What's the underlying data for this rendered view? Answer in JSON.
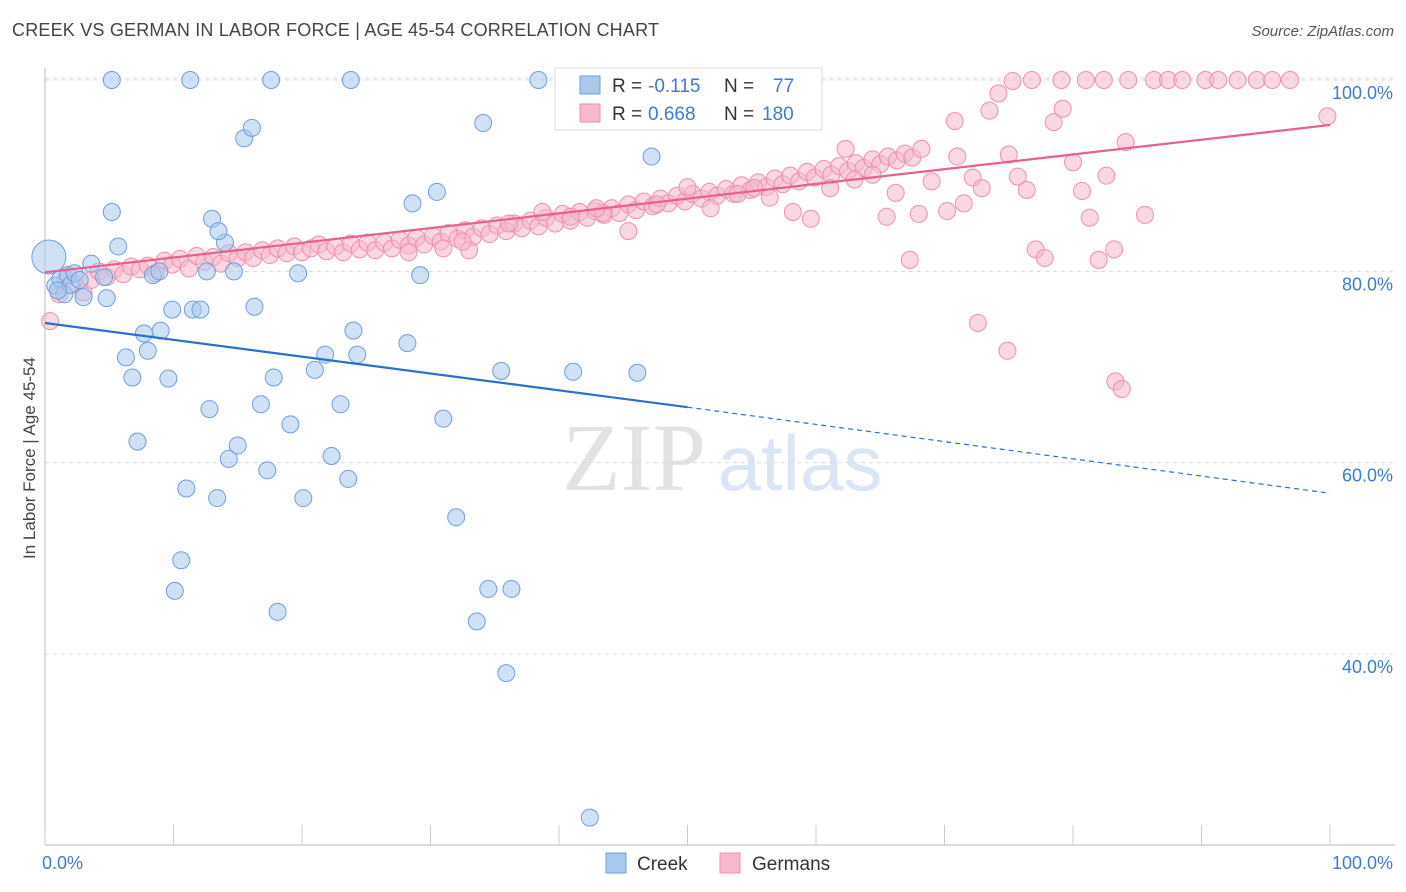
{
  "header": {
    "title": "CREEK VS GERMAN IN LABOR FORCE | AGE 45-54 CORRELATION CHART",
    "source": "Source: ZipAtlas.com"
  },
  "watermark": {
    "zip": "ZIP",
    "atlas": "atlas"
  },
  "legend_box": {
    "rows": [
      {
        "r_label": "R =",
        "r_value": "-0.115",
        "n_label": "N =",
        "n_value": "77"
      },
      {
        "r_label": "R =",
        "r_value": "0.668",
        "n_label": "N =",
        "n_value": "180"
      }
    ]
  },
  "bottom_legend": {
    "creek": "Creek",
    "germans": "Germans"
  },
  "colors": {
    "creek_fill": "#a9c8ee",
    "creek_stroke": "#6e9fd8",
    "creek_line": "#2b6fcc",
    "german_fill": "#f6b8cb",
    "german_stroke": "#ee8fae",
    "german_line": "#e8608c",
    "value_blue": "#3d7bd0",
    "grid": "#d9d9d9"
  },
  "chart_data": {
    "type": "scatter",
    "title": "CREEK VS GERMAN IN LABOR FORCE | AGE 45-54 CORRELATION CHART",
    "xlabel": "",
    "ylabel": "In Labor Force | Age 45-54",
    "xlim": [
      0,
      100
    ],
    "ylim": [
      20,
      103
    ],
    "x_tick_labels": [
      "0.0%",
      "100.0%"
    ],
    "y_ticks": [
      40,
      60,
      80,
      100
    ],
    "y_tick_labels": [
      "40.0%",
      "60.0%",
      "80.0%",
      "100.0%"
    ],
    "grid": "horizontal dashed",
    "legend_position": "bottom-center",
    "series": [
      {
        "name": "Creek",
        "r": -0.115,
        "n": 77,
        "trend": {
          "x0": 0,
          "y0": 74.6,
          "x1": 50,
          "y1": 65.8,
          "dashed_to_x": 100,
          "dashed_to_y": 56.8
        },
        "points": [
          [
            0.3,
            81.5
          ],
          [
            0.8,
            78.5
          ],
          [
            1.2,
            79.2
          ],
          [
            1.5,
            77.6
          ],
          [
            1.8,
            79.6
          ],
          [
            2.0,
            78.6
          ],
          [
            2.3,
            79.8
          ],
          [
            2.7,
            79.1
          ],
          [
            3.0,
            77.3
          ],
          [
            3.6,
            80.8
          ],
          [
            4.8,
            77.2
          ],
          [
            5.2,
            86.2
          ],
          [
            5.7,
            82.6
          ],
          [
            6.3,
            71.0
          ],
          [
            6.8,
            68.9
          ],
          [
            7.2,
            62.2
          ],
          [
            7.7,
            73.5
          ],
          [
            8.0,
            71.7
          ],
          [
            8.4,
            79.6
          ],
          [
            8.9,
            80.0
          ],
          [
            9.0,
            73.8
          ],
          [
            9.6,
            68.8
          ],
          [
            9.9,
            76.0
          ],
          [
            10.1,
            46.6
          ],
          [
            10.6,
            49.8
          ],
          [
            11.0,
            57.3
          ],
          [
            11.5,
            76.0
          ],
          [
            12.1,
            76.0
          ],
          [
            12.6,
            80.0
          ],
          [
            12.8,
            65.6
          ],
          [
            13.0,
            85.5
          ],
          [
            13.4,
            56.3
          ],
          [
            14.0,
            83.0
          ],
          [
            14.3,
            60.4
          ],
          [
            14.7,
            80.0
          ],
          [
            15.0,
            61.8
          ],
          [
            15.5,
            93.9
          ],
          [
            16.1,
            95.0
          ],
          [
            16.3,
            76.3
          ],
          [
            16.8,
            66.1
          ],
          [
            17.3,
            59.2
          ],
          [
            17.8,
            68.9
          ],
          [
            18.1,
            44.4
          ],
          [
            19.1,
            64.0
          ],
          [
            19.7,
            79.8
          ],
          [
            20.1,
            56.3
          ],
          [
            21.0,
            69.7
          ],
          [
            21.8,
            71.3
          ],
          [
            22.3,
            60.7
          ],
          [
            23.0,
            66.1
          ],
          [
            23.6,
            58.3
          ],
          [
            24.0,
            73.8
          ],
          [
            24.3,
            71.3
          ],
          [
            28.2,
            72.5
          ],
          [
            28.6,
            87.1
          ],
          [
            29.2,
            79.6
          ],
          [
            30.5,
            88.3
          ],
          [
            31.0,
            64.6
          ],
          [
            32.0,
            54.3
          ],
          [
            33.6,
            43.4
          ],
          [
            34.1,
            95.5
          ],
          [
            34.5,
            46.8
          ],
          [
            35.5,
            69.6
          ],
          [
            35.9,
            38.0
          ],
          [
            36.3,
            46.8
          ],
          [
            38.4,
            100
          ],
          [
            41.1,
            69.5
          ],
          [
            42.4,
            22.9
          ],
          [
            46.1,
            69.4
          ],
          [
            47.2,
            92.0
          ],
          [
            5.2,
            100
          ],
          [
            11.3,
            100
          ],
          [
            17.6,
            100
          ],
          [
            23.8,
            100
          ],
          [
            4.6,
            79.4
          ],
          [
            13.5,
            84.2
          ],
          [
            1.0,
            78.0
          ]
        ]
      },
      {
        "name": "Germans",
        "r": 0.668,
        "n": 180,
        "trend": {
          "x0": 0,
          "y0": 79.9,
          "x1": 100,
          "y1": 95.3
        },
        "points": [
          [
            0.4,
            74.8
          ],
          [
            1.1,
            77.6
          ],
          [
            1.6,
            79.2
          ],
          [
            2.2,
            78.8
          ],
          [
            3.0,
            77.8
          ],
          [
            3.6,
            79.1
          ],
          [
            4.2,
            80.0
          ],
          [
            4.8,
            79.4
          ],
          [
            5.4,
            80.2
          ],
          [
            6.1,
            79.7
          ],
          [
            6.7,
            80.5
          ],
          [
            7.4,
            80.2
          ],
          [
            8.0,
            80.6
          ],
          [
            8.6,
            79.8
          ],
          [
            9.3,
            81.1
          ],
          [
            9.9,
            80.7
          ],
          [
            10.5,
            81.3
          ],
          [
            11.2,
            80.3
          ],
          [
            11.8,
            81.6
          ],
          [
            12.4,
            81.0
          ],
          [
            13.1,
            81.5
          ],
          [
            13.7,
            80.8
          ],
          [
            14.3,
            81.9
          ],
          [
            15.0,
            81.4
          ],
          [
            15.6,
            82.0
          ],
          [
            16.2,
            81.4
          ],
          [
            16.9,
            82.2
          ],
          [
            17.5,
            81.7
          ],
          [
            18.1,
            82.4
          ],
          [
            18.8,
            81.9
          ],
          [
            19.4,
            82.6
          ],
          [
            20.0,
            82.0
          ],
          [
            20.7,
            82.4
          ],
          [
            21.3,
            82.8
          ],
          [
            21.9,
            82.1
          ],
          [
            22.6,
            82.6
          ],
          [
            23.2,
            82.0
          ],
          [
            23.8,
            82.9
          ],
          [
            24.5,
            82.3
          ],
          [
            25.1,
            83.0
          ],
          [
            25.7,
            82.2
          ],
          [
            26.4,
            83.0
          ],
          [
            27.0,
            82.4
          ],
          [
            27.6,
            83.3
          ],
          [
            28.3,
            82.7
          ],
          [
            28.9,
            83.5
          ],
          [
            29.5,
            82.8
          ],
          [
            30.2,
            83.7
          ],
          [
            30.8,
            83.1
          ],
          [
            31.4,
            84.0
          ],
          [
            32.1,
            83.4
          ],
          [
            32.7,
            84.3
          ],
          [
            33.3,
            83.6
          ],
          [
            34.0,
            84.5
          ],
          [
            34.6,
            83.9
          ],
          [
            35.2,
            84.8
          ],
          [
            35.9,
            84.2
          ],
          [
            36.5,
            85.0
          ],
          [
            37.1,
            84.5
          ],
          [
            37.8,
            85.3
          ],
          [
            38.4,
            84.7
          ],
          [
            39.0,
            85.6
          ],
          [
            39.7,
            85.0
          ],
          [
            40.3,
            86.0
          ],
          [
            40.9,
            85.3
          ],
          [
            41.6,
            86.2
          ],
          [
            42.2,
            85.6
          ],
          [
            42.8,
            86.3
          ],
          [
            43.5,
            85.9
          ],
          [
            44.1,
            86.6
          ],
          [
            44.7,
            86.1
          ],
          [
            45.4,
            87.0
          ],
          [
            46.0,
            86.4
          ],
          [
            46.6,
            87.3
          ],
          [
            47.3,
            86.8
          ],
          [
            47.9,
            87.6
          ],
          [
            48.5,
            87.1
          ],
          [
            49.2,
            87.9
          ],
          [
            49.8,
            87.3
          ],
          [
            50.4,
            88.1
          ],
          [
            51.1,
            87.6
          ],
          [
            51.7,
            88.3
          ],
          [
            52.3,
            87.9
          ],
          [
            53.0,
            88.6
          ],
          [
            53.6,
            88.1
          ],
          [
            54.2,
            89.0
          ],
          [
            54.9,
            88.5
          ],
          [
            55.5,
            89.3
          ],
          [
            56.1,
            88.8
          ],
          [
            56.8,
            89.7
          ],
          [
            57.4,
            89.1
          ],
          [
            58.0,
            90.0
          ],
          [
            58.7,
            89.4
          ],
          [
            59.3,
            90.4
          ],
          [
            59.9,
            89.8
          ],
          [
            60.6,
            90.7
          ],
          [
            61.2,
            90.1
          ],
          [
            61.8,
            91.0
          ],
          [
            62.5,
            90.5
          ],
          [
            63.1,
            91.3
          ],
          [
            63.7,
            90.8
          ],
          [
            64.4,
            91.7
          ],
          [
            65.0,
            91.2
          ],
          [
            65.6,
            92.0
          ],
          [
            66.3,
            91.6
          ],
          [
            66.9,
            92.3
          ],
          [
            67.5,
            91.9
          ],
          [
            68.2,
            92.8
          ],
          [
            33.0,
            82.2
          ],
          [
            38.7,
            86.2
          ],
          [
            40.9,
            85.7
          ],
          [
            43.4,
            86.1
          ],
          [
            45.4,
            84.2
          ],
          [
            47.6,
            87.0
          ],
          [
            50.0,
            88.8
          ],
          [
            51.8,
            86.6
          ],
          [
            53.9,
            88.1
          ],
          [
            55.2,
            88.7
          ],
          [
            56.4,
            87.7
          ],
          [
            58.2,
            86.2
          ],
          [
            59.6,
            85.5
          ],
          [
            61.1,
            88.7
          ],
          [
            62.3,
            92.8
          ],
          [
            63.0,
            89.6
          ],
          [
            64.4,
            90.1
          ],
          [
            65.5,
            85.7
          ],
          [
            66.2,
            88.2
          ],
          [
            67.3,
            81.2
          ],
          [
            68.0,
            86.0
          ],
          [
            69.0,
            89.4
          ],
          [
            70.2,
            86.3
          ],
          [
            71.0,
            92.0
          ],
          [
            71.5,
            87.1
          ],
          [
            72.2,
            89.8
          ],
          [
            72.9,
            88.7
          ],
          [
            73.5,
            96.8
          ],
          [
            74.2,
            98.6
          ],
          [
            75.0,
            92.2
          ],
          [
            75.7,
            89.9
          ],
          [
            76.4,
            88.5
          ],
          [
            77.1,
            82.3
          ],
          [
            77.8,
            81.4
          ],
          [
            78.5,
            95.6
          ],
          [
            79.2,
            97.0
          ],
          [
            80.0,
            91.4
          ],
          [
            80.7,
            88.4
          ],
          [
            81.3,
            85.6
          ],
          [
            82.0,
            81.2
          ],
          [
            82.6,
            90.0
          ],
          [
            83.2,
            82.3
          ],
          [
            84.1,
            93.5
          ],
          [
            85.6,
            85.9
          ],
          [
            75.3,
            99.9
          ],
          [
            76.8,
            100
          ],
          [
            79.1,
            100
          ],
          [
            81.0,
            100
          ],
          [
            82.4,
            100
          ],
          [
            84.3,
            100
          ],
          [
            86.3,
            100
          ],
          [
            87.4,
            100
          ],
          [
            88.5,
            100
          ],
          [
            90.3,
            100
          ],
          [
            91.3,
            100
          ],
          [
            92.8,
            100
          ],
          [
            94.3,
            100
          ],
          [
            95.5,
            100
          ],
          [
            96.9,
            100
          ],
          [
            70.8,
            95.7
          ],
          [
            72.6,
            74.6
          ],
          [
            74.9,
            71.7
          ],
          [
            83.3,
            68.5
          ],
          [
            83.8,
            67.7
          ],
          [
            99.8,
            96.2
          ],
          [
            28.3,
            82.0
          ],
          [
            31.0,
            82.4
          ],
          [
            32.5,
            83.1
          ],
          [
            36.1,
            85.0
          ],
          [
            42.9,
            86.6
          ]
        ]
      }
    ]
  }
}
